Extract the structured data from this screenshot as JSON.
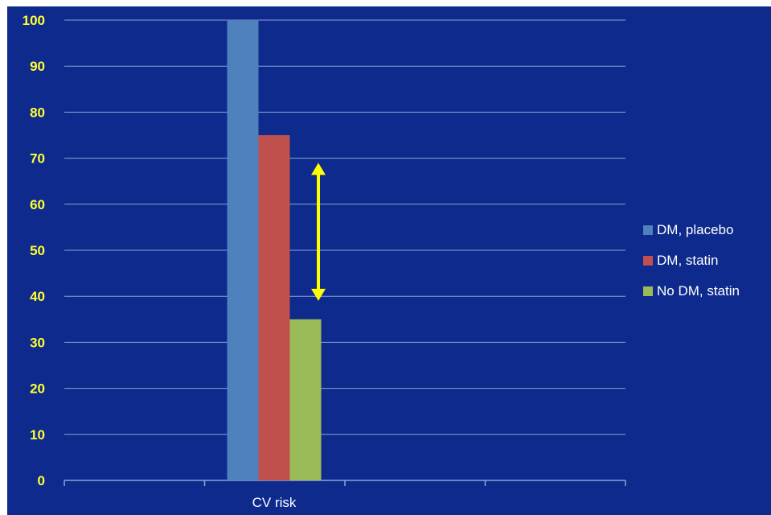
{
  "chart_data": {
    "type": "bar",
    "categories": [
      "CV risk"
    ],
    "series": [
      {
        "name": "DM, placebo",
        "values": [
          100
        ]
      },
      {
        "name": "DM, statin",
        "values": [
          75
        ]
      },
      {
        "name": "No DM, statin",
        "values": [
          35
        ]
      }
    ],
    "ylim": [
      0,
      100
    ],
    "yticks": [
      0,
      10,
      20,
      30,
      40,
      50,
      60,
      70,
      80,
      90,
      100
    ],
    "grid": true,
    "legend_position": "right",
    "annotation": {
      "type": "double-arrow",
      "from": 69,
      "to": 39,
      "color": "#ffff00"
    },
    "colors": {
      "background": "#0d2a8c",
      "series": [
        "#4f81bd",
        "#c0504d",
        "#9bbb59"
      ],
      "tick_text": "#ffff33",
      "gridlines": "#8fa3d6"
    }
  }
}
